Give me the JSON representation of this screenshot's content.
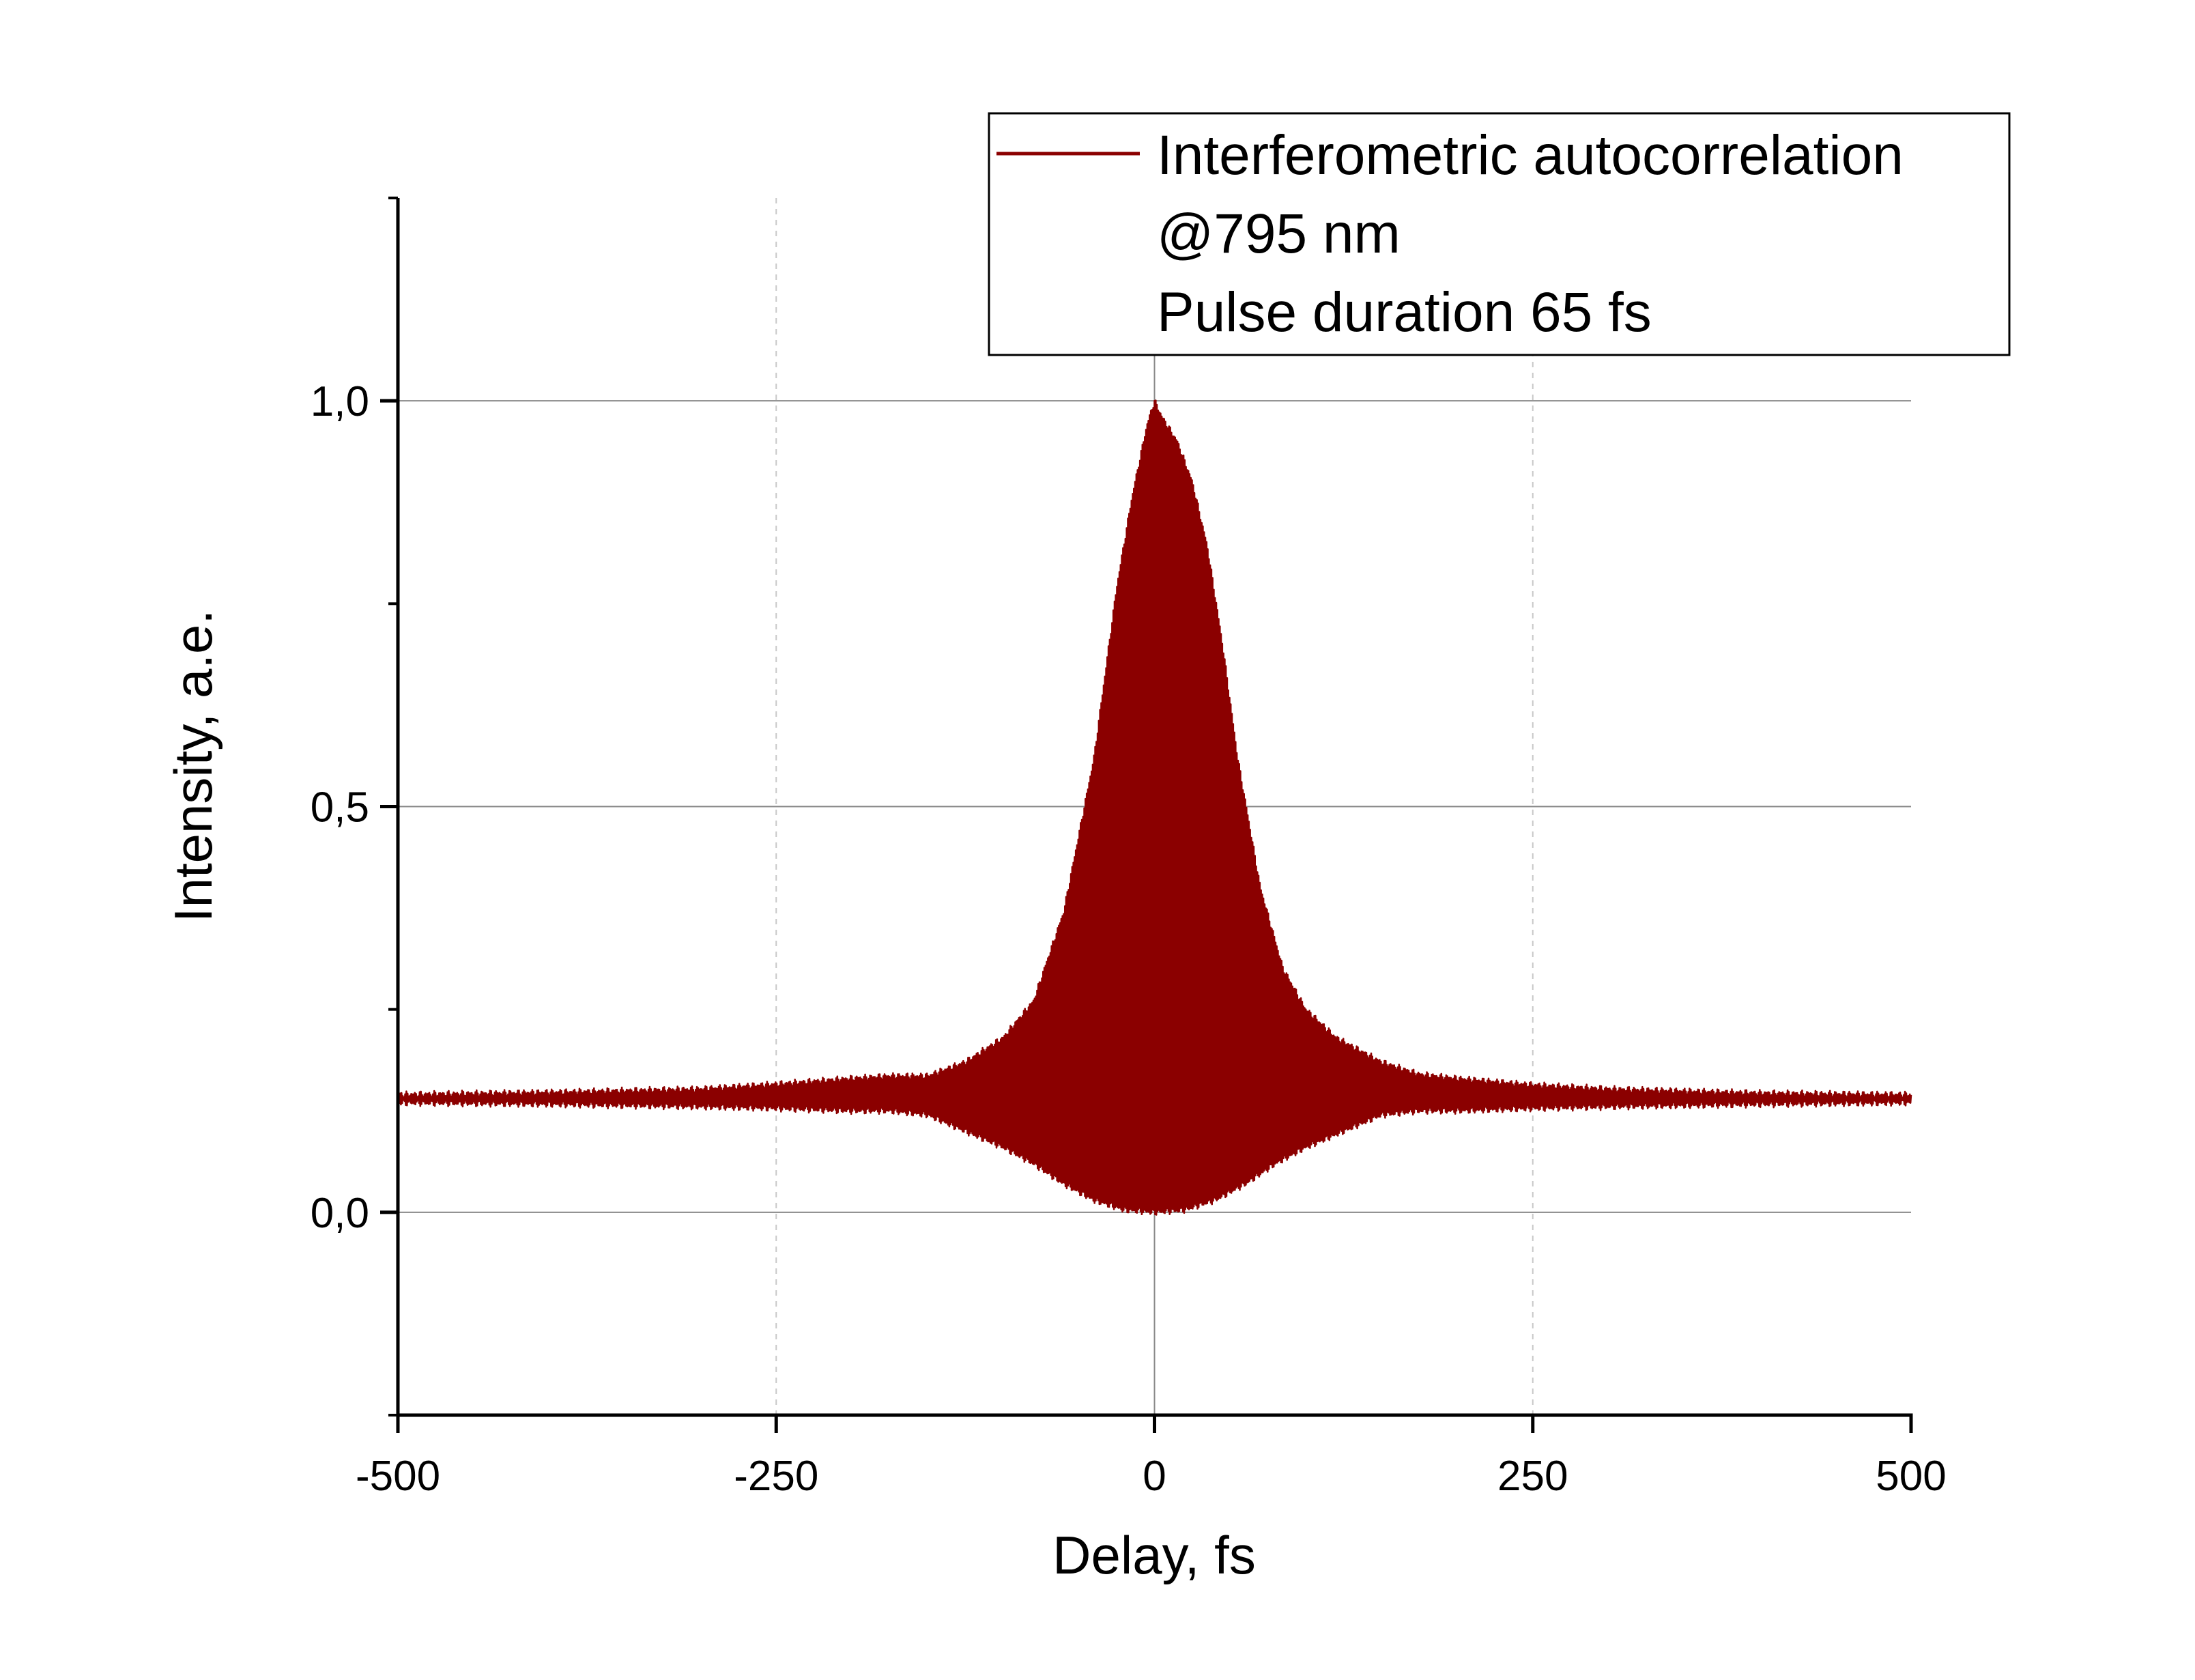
{
  "chart_data": {
    "type": "line",
    "title": "",
    "xlabel": "Delay, fs",
    "ylabel": "Intensity, a.e.",
    "xlim": [
      -500,
      500
    ],
    "ylim": [
      -0.25,
      1.25
    ],
    "x_ticks": [
      -500,
      -250,
      0,
      250,
      500
    ],
    "x_tick_labels": [
      "-500",
      "-250",
      "0",
      "250",
      "500"
    ],
    "y_ticks": [
      0.0,
      0.5,
      1.0
    ],
    "y_tick_labels": [
      "0,0",
      "0,5",
      "1,0"
    ],
    "y_minor_ticks": [
      -0.25,
      0.25,
      0.75,
      1.25
    ],
    "grid": {
      "horizontal_solid": [
        0.0,
        0.5,
        1.0
      ],
      "vertical_solid": [
        0
      ],
      "vertical_dashed": [
        -250,
        250
      ]
    },
    "legend": {
      "position": "top-right",
      "lines": [
        "Interferometric autocorrelation",
        "@795 nm",
        "Pulse duration 65 fs"
      ]
    },
    "series": [
      {
        "name": "Interferometric autocorrelation",
        "color": "#8b0000",
        "baseline": 0.14,
        "envelope_upper": [
          [
            -500,
            0.145
          ],
          [
            -400,
            0.148
          ],
          [
            -300,
            0.152
          ],
          [
            -250,
            0.158
          ],
          [
            -200,
            0.165
          ],
          [
            -175,
            0.168
          ],
          [
            -150,
            0.168
          ],
          [
            -125,
            0.185
          ],
          [
            -100,
            0.215
          ],
          [
            -80,
            0.26
          ],
          [
            -60,
            0.37
          ],
          [
            -40,
            0.56
          ],
          [
            -25,
            0.77
          ],
          [
            -15,
            0.88
          ],
          [
            -5,
            0.97
          ],
          [
            0,
            1.0
          ],
          [
            5,
            0.98
          ],
          [
            15,
            0.95
          ],
          [
            25,
            0.9
          ],
          [
            35,
            0.82
          ],
          [
            45,
            0.7
          ],
          [
            55,
            0.56
          ],
          [
            70,
            0.4
          ],
          [
            85,
            0.3
          ],
          [
            100,
            0.25
          ],
          [
            120,
            0.215
          ],
          [
            150,
            0.185
          ],
          [
            175,
            0.17
          ],
          [
            200,
            0.165
          ],
          [
            250,
            0.157
          ],
          [
            300,
            0.152
          ],
          [
            400,
            0.147
          ],
          [
            500,
            0.145
          ]
        ],
        "envelope_lower": [
          [
            -500,
            0.135
          ],
          [
            -400,
            0.133
          ],
          [
            -300,
            0.13
          ],
          [
            -250,
            0.128
          ],
          [
            -200,
            0.125
          ],
          [
            -175,
            0.125
          ],
          [
            -150,
            0.12
          ],
          [
            -125,
            0.1
          ],
          [
            -100,
            0.08
          ],
          [
            -80,
            0.06
          ],
          [
            -60,
            0.035
          ],
          [
            -40,
            0.015
          ],
          [
            -20,
            0.003
          ],
          [
            0,
            0.0
          ],
          [
            20,
            0.003
          ],
          [
            40,
            0.015
          ],
          [
            60,
            0.035
          ],
          [
            80,
            0.06
          ],
          [
            100,
            0.08
          ],
          [
            125,
            0.1
          ],
          [
            150,
            0.12
          ],
          [
            175,
            0.125
          ],
          [
            200,
            0.125
          ],
          [
            250,
            0.128
          ],
          [
            300,
            0.13
          ],
          [
            400,
            0.133
          ],
          [
            500,
            0.135
          ]
        ]
      }
    ]
  }
}
